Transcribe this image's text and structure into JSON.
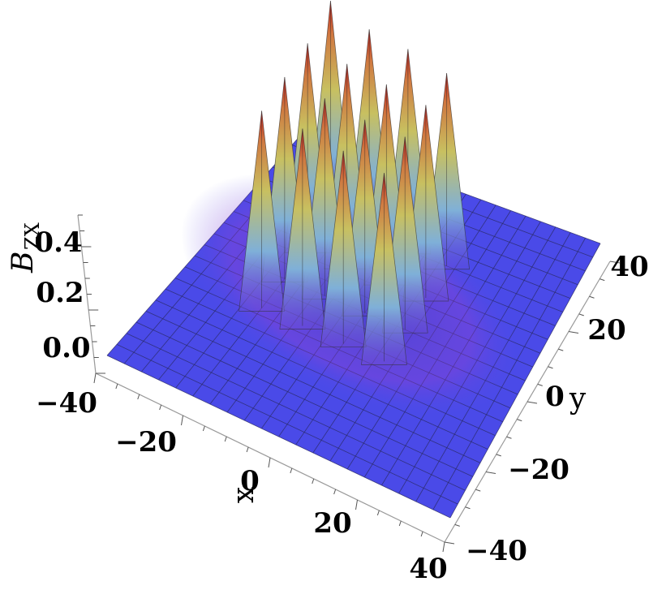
{
  "chart_data": {
    "type": "surface3d",
    "x_label": "x",
    "y_label": "y",
    "z_label": "B",
    "z_label_subscript": "ZX",
    "x_ticks": [
      "−40",
      "−20",
      "0",
      "20",
      "40"
    ],
    "y_ticks": [
      "−40",
      "−20",
      "0",
      "20",
      "40"
    ],
    "z_ticks": [
      "0.0",
      "0.2",
      "0.4"
    ],
    "x_range": [
      -40,
      40
    ],
    "y_range": [
      -40,
      40
    ],
    "z_range": [
      0,
      0.5
    ],
    "peaks": [
      {
        "x": -20,
        "y": 20,
        "z": 0.5
      },
      {
        "x": -10,
        "y": 20,
        "z": 0.47
      },
      {
        "x": 0,
        "y": 20,
        "z": 0.46
      },
      {
        "x": 10,
        "y": 20,
        "z": 0.44
      },
      {
        "x": -20,
        "y": 10,
        "z": 0.47
      },
      {
        "x": -10,
        "y": 10,
        "z": 0.46
      },
      {
        "x": 0,
        "y": 10,
        "z": 0.45
      },
      {
        "x": 10,
        "y": 10,
        "z": 0.44
      },
      {
        "x": -20,
        "y": 0,
        "z": 0.46
      },
      {
        "x": -10,
        "y": 0,
        "z": 0.45
      },
      {
        "x": 0,
        "y": 0,
        "z": 0.44
      },
      {
        "x": 10,
        "y": 0,
        "z": 0.44
      },
      {
        "x": -20,
        "y": -10,
        "z": 0.45
      },
      {
        "x": -10,
        "y": -10,
        "z": 0.45
      },
      {
        "x": 0,
        "y": -10,
        "z": 0.44
      },
      {
        "x": 10,
        "y": -10,
        "z": 0.43
      }
    ],
    "surface_color": "#4a4ae8",
    "mesh_color": "#2a2a66"
  }
}
